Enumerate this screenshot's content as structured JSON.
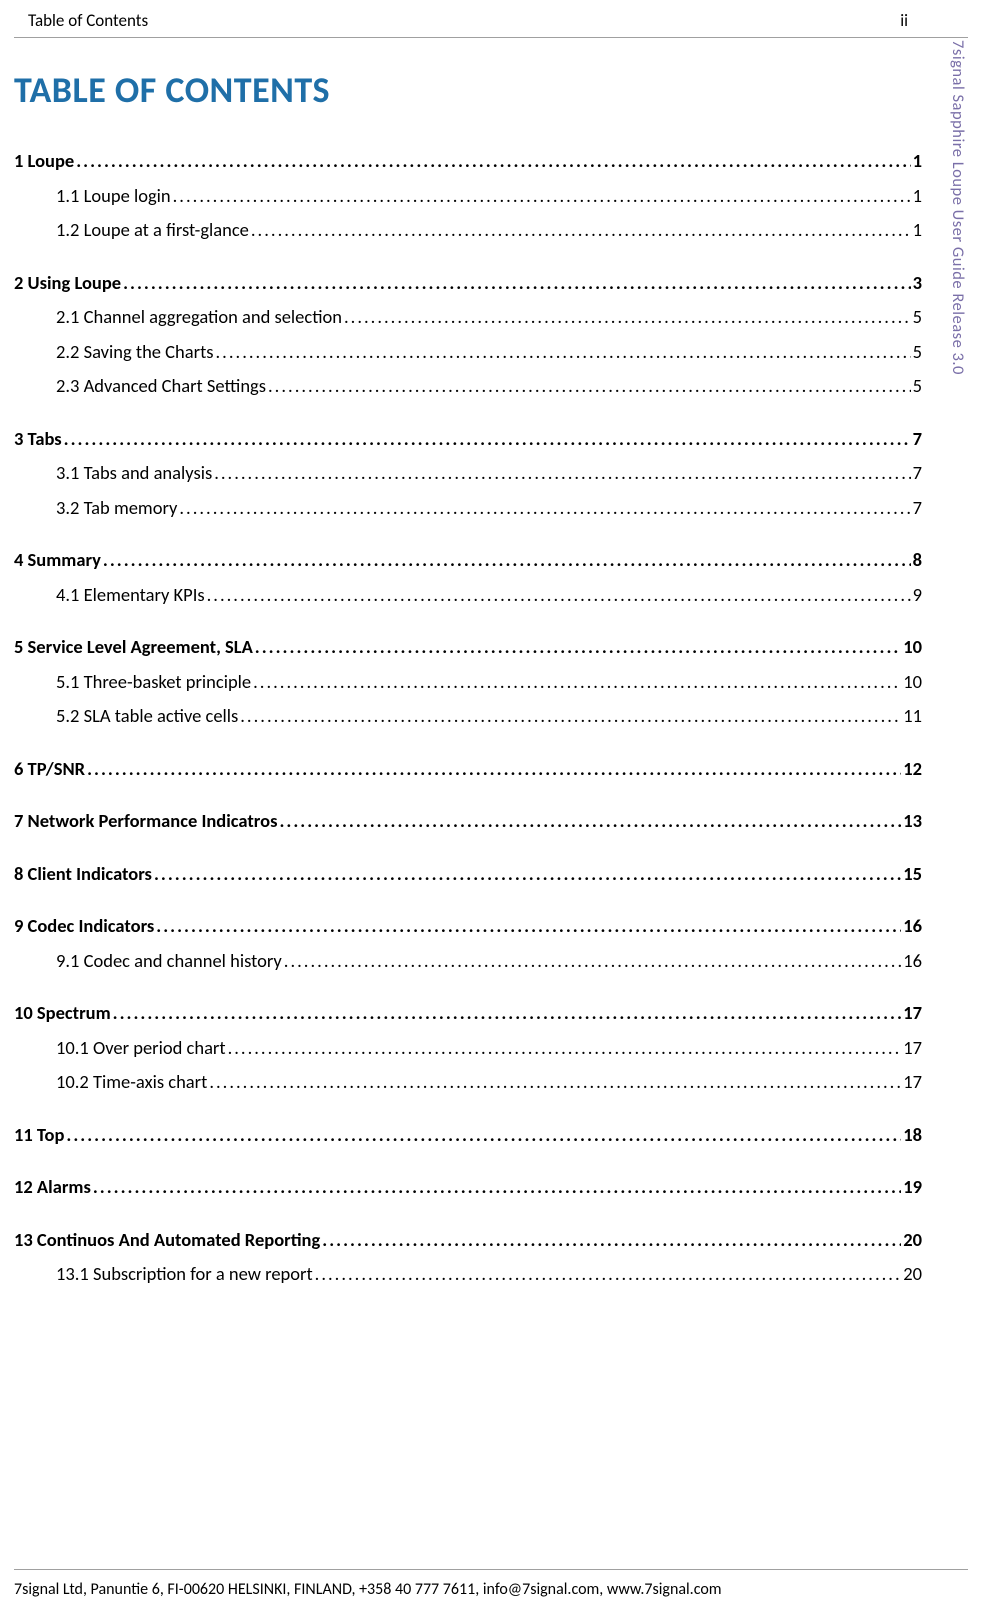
{
  "header": {
    "left": "Table of Contents",
    "right": "ii"
  },
  "main_title": "TABLE OF CONTENTS",
  "vertical_label": "7signal Sapphire Loupe User Guide Release 3.0",
  "footer": "7signal Ltd, Panuntie 6, FI-00620 HELSINKI, FINLAND, +358 40 777 7611, info@7signal.com, www.7signal.com",
  "toc_entries": [
    {
      "level": 1,
      "label": "1 Loupe",
      "page": "1"
    },
    {
      "level": 2,
      "label": "1.1 Loupe login",
      "page": "1"
    },
    {
      "level": 2,
      "label": "1.2 Loupe at a first-glance",
      "page": "1"
    },
    {
      "level": 1,
      "label": "2 Using Loupe",
      "page": "3"
    },
    {
      "level": 2,
      "label": "2.1 Channel aggregation and selection",
      "page": "5"
    },
    {
      "level": 2,
      "label": "2.2 Saving the Charts",
      "page": "5"
    },
    {
      "level": 2,
      "label": "2.3 Advanced Chart Settings",
      "page": "5"
    },
    {
      "level": 1,
      "label": "3 Tabs",
      "page": "7"
    },
    {
      "level": 2,
      "label": "3.1 Tabs and analysis",
      "page": "7"
    },
    {
      "level": 2,
      "label": "3.2 Tab memory",
      "page": "7"
    },
    {
      "level": 1,
      "label": "4 Summary",
      "page": "8"
    },
    {
      "level": 2,
      "label": "4.1 Elementary KPIs",
      "page": "9"
    },
    {
      "level": 1,
      "label": "5 Service Level Agreement, SLA",
      "page": "10"
    },
    {
      "level": 2,
      "label": "5.1 Three-basket principle",
      "page": "10"
    },
    {
      "level": 2,
      "label": "5.2 SLA table active cells",
      "page": "11"
    },
    {
      "level": 1,
      "label": "6 TP/SNR",
      "page": "12"
    },
    {
      "level": 1,
      "label": "7 Network Performance Indicatros",
      "page": "13"
    },
    {
      "level": 1,
      "label": "8 Client Indicators",
      "page": "15"
    },
    {
      "level": 1,
      "label": "9 Codec Indicators",
      "page": "16"
    },
    {
      "level": 2,
      "label": "9.1 Codec and channel history",
      "page": "16"
    },
    {
      "level": 1,
      "label": "10 Spectrum",
      "page": "17"
    },
    {
      "level": 2,
      "label": "10.1 Over period chart",
      "page": "17"
    },
    {
      "level": 2,
      "label": "10.2 Time-axis chart",
      "page": "17"
    },
    {
      "level": 1,
      "label": "11 Top",
      "page": "18"
    },
    {
      "level": 1,
      "label": "12 Alarms",
      "page": "19"
    },
    {
      "level": 1,
      "label": "13 Continuos And Automated Reporting",
      "page": "20"
    },
    {
      "level": 2,
      "label": "13.1 Subscription for a new report",
      "page": "20"
    }
  ],
  "colors": {
    "title_color": "#1f6fa8",
    "vertical_color": "#7a6fa8",
    "text_color": "#000000",
    "rule_color": "#a0a0a0",
    "background": "#ffffff"
  },
  "typography": {
    "font_family": "Calibri",
    "title_fontsize_pt": 26,
    "body_fontsize_pt": 14,
    "header_fontsize_pt": 12
  }
}
